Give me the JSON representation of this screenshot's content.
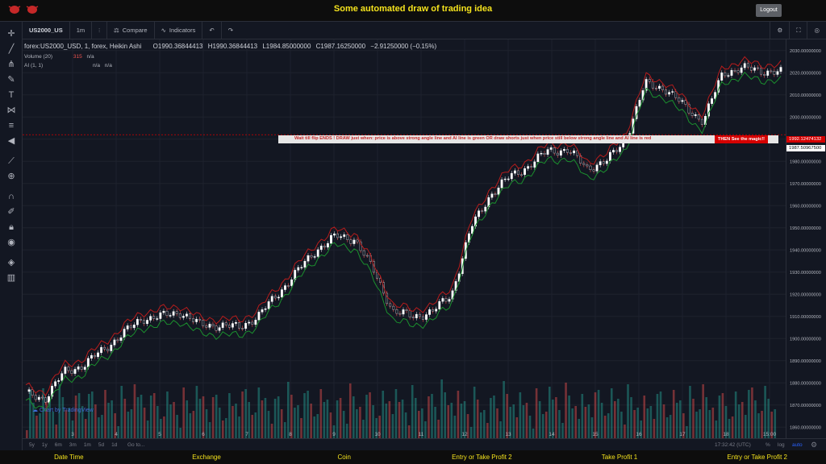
{
  "app": {
    "title": "Some automated draw of trading idea",
    "logout_label": "Logout"
  },
  "toolbar": {
    "symbol": "US2000_US",
    "interval": "1m",
    "compare_label": "Compare",
    "indicators_label": "Indicators"
  },
  "legend": {
    "series": "forex:US2000_USD, 1, forex, Heikin Ashi",
    "open": "O1990.36844413",
    "high": "H1990.36844413",
    "low": "L1984.85000000",
    "close": "C1987.16250000",
    "change": "−2.91250000 (−0.15%)",
    "volume_label": "Volume (20)",
    "volume_value": "315",
    "volume_na": "n/a",
    "ai_label": "AI (1, 1)",
    "ai_na1": "n/a",
    "ai_na2": "n/a"
  },
  "callout": {
    "text": "Wait till flip ENDS  !    DRAW just when:  price is above strong angle line and AI line is green        OR        draw shorts just when price still below strong angle line and AI line is red",
    "action": "THEN See the magic!!"
  },
  "price_tags": {
    "red_tag": "1992.12474132",
    "last_price": "1987.50967500"
  },
  "price_axis": [
    "2030.00000000",
    "2020.00000000",
    "2010.00000000",
    "2000.00000000",
    "1990.00000000",
    "1980.00000000",
    "1970.00000000",
    "1960.00000000",
    "1950.00000000",
    "1940.00000000",
    "1930.00000000",
    "1920.00000000",
    "1910.00000000",
    "1900.00000000",
    "1890.00000000",
    "1880.00000000",
    "1870.00000000",
    "1860.00000000"
  ],
  "time_axis": [
    "3",
    "4",
    "5",
    "6",
    "7",
    "8",
    "9",
    "10",
    "11",
    "12",
    "13",
    "14",
    "15",
    "16",
    "17",
    "18",
    "15:00"
  ],
  "bottom": {
    "ranges": [
      "5y",
      "1y",
      "6m",
      "3m",
      "1m",
      "5d",
      "1d"
    ],
    "goto": "Go to...",
    "clock": "17:32:42 (UTC)",
    "pct": "%",
    "log": "log",
    "auto": "auto"
  },
  "watermark": "Chart by TradingView",
  "footer": [
    "Date Time",
    "Exchange",
    "Coin",
    "Entry or Take Profit 2",
    "Take Profit 1",
    "Entry or Take Profit 2"
  ],
  "colors": {
    "accent": "#f5e31d",
    "up": "#26a69a",
    "down": "#ef5350",
    "ai_green": "#00c853",
    "ai_red": "#d50000"
  },
  "chart_data": {
    "type": "line",
    "xlabel": "",
    "ylabel": "",
    "ylim": [
      1855,
      2035
    ],
    "x": [
      1,
      2,
      3,
      4,
      5,
      6,
      7,
      8,
      9,
      10,
      11,
      12,
      13,
      14,
      15,
      16,
      17,
      18,
      19,
      20,
      21,
      22,
      23,
      24,
      25,
      26,
      27,
      28,
      29,
      30,
      31,
      32,
      33,
      34,
      35,
      36,
      37,
      38,
      39,
      40
    ],
    "series": [
      {
        "name": "",
        "values": [
          1875,
          1873,
          1885,
          1888,
          1895,
          1902,
          1909,
          1910,
          1912,
          1906,
          1906,
          1905,
          1910,
          1920,
          1930,
          1940,
          1946,
          1945,
          1930,
          1912,
          1910,
          1912,
          1920,
          1950,
          1965,
          1973,
          1978,
          1985,
          1985,
          1977,
          1980,
          1990,
          2015,
          2013,
          2005,
          1998,
          2020,
          2022,
          2021,
          2020
        ]
      }
    ]
  }
}
